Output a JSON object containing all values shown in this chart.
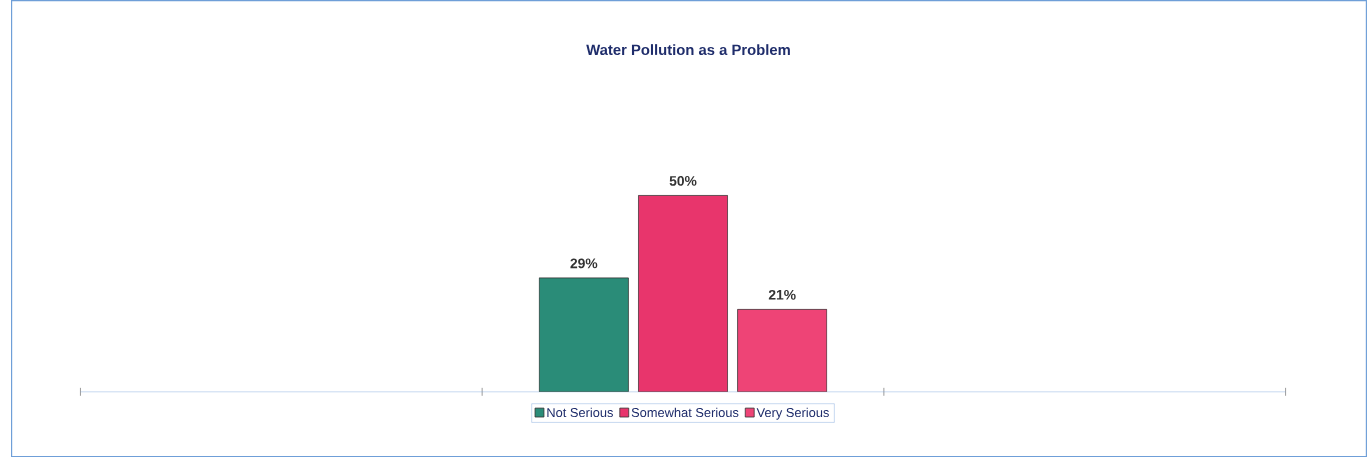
{
  "chart_data": {
    "type": "bar",
    "title": "Water Pollution as a Problem",
    "categories": [
      null
    ],
    "series": [
      {
        "name": "Not Serious",
        "color": "#2a8c78",
        "values": [
          29
        ],
        "value_labels": [
          "29%"
        ]
      },
      {
        "name": "Somewhat Serious",
        "color": "#e8356c",
        "values": [
          50
        ],
        "value_labels": [
          "50%"
        ]
      },
      {
        "name": "Very Serious",
        "color": "#ee4476",
        "values": [
          21
        ],
        "value_labels": [
          "21%"
        ]
      }
    ],
    "legend": "bottom"
  }
}
